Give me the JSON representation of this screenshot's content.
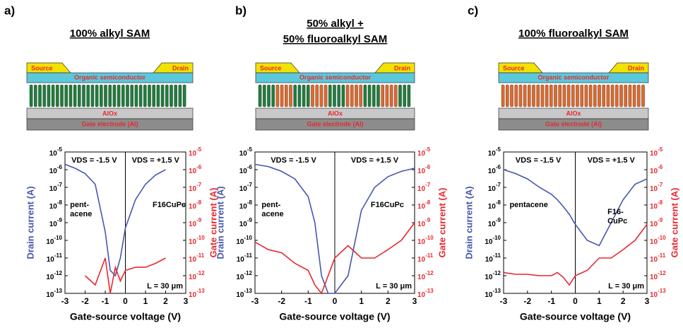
{
  "chart_data": [
    {
      "type": "line",
      "panel_label": "a)",
      "title": [
        "100% alkyl SAM"
      ],
      "device": {
        "source": "Source",
        "drain": "Drain",
        "semiconductor": "Organic semiconductor",
        "dielectric": "AlOx",
        "gate": "Gate electrode (Al)",
        "sam_colors": [
          "#1f7d3c"
        ]
      },
      "x_label": "Gate-source voltage (V)",
      "y_label": "Drain current (A)",
      "y2_label": "Gate current (A)",
      "annotations": {
        "vds_neg": "VDS = -1.5 V",
        "vds_pos": "VDS = +1.5 V",
        "left_material": [
          "pent-",
          "acene"
        ],
        "right_material": [
          "F16CuPc"
        ],
        "length": "L = 30 μm"
      },
      "xlim": [
        -3,
        3
      ],
      "xticks": [
        -3,
        -2,
        -1,
        0,
        1,
        2,
        3
      ],
      "log_y": true,
      "ylim": [
        1e-13,
        1e-05
      ],
      "yticks": [
        {
          "value": 1e-13,
          "label": "10-13"
        },
        {
          "value": 1e-12,
          "label": "10-12"
        },
        {
          "value": 1e-11,
          "label": "10-11"
        },
        {
          "value": 1e-10,
          "label": "10-10"
        },
        {
          "value": 1e-09,
          "label": "10-9"
        },
        {
          "value": 1e-08,
          "label": "10-8"
        },
        {
          "value": 1e-07,
          "label": "10-7"
        },
        {
          "value": 1e-06,
          "label": "10-6"
        },
        {
          "value": 1e-05,
          "label": "10-5"
        }
      ],
      "y2lim": [
        1e-13,
        1e-05
      ],
      "y2ticks": [
        {
          "value": 1e-13,
          "label": "10-13"
        },
        {
          "value": 1e-12,
          "label": "10-12"
        },
        {
          "value": 1e-11,
          "label": "10-11"
        },
        {
          "value": 1e-10,
          "label": "10-10"
        },
        {
          "value": 1e-09,
          "label": "10-9"
        },
        {
          "value": 1e-08,
          "label": "10-8"
        },
        {
          "value": 1e-07,
          "label": "10-7"
        },
        {
          "value": 1e-06,
          "label": "10-6"
        },
        {
          "value": 1e-05,
          "label": "10-5"
        }
      ],
      "x": [
        -3,
        -2.5,
        -2,
        -1.5,
        -1,
        -0.75,
        -0.5,
        -0.25,
        0,
        0.5,
        1,
        1.5,
        2,
        2.5,
        3
      ],
      "series": [
        {
          "color": "#4656b0",
          "values": [
            2e-06,
            1.2e-06,
            6e-07,
            1.5e-07,
            3e-10,
            2e-12,
            1e-12,
            1e-11,
            5e-10,
            2e-08,
            1.5e-07,
            5e-07,
            1e-06,
            null,
            null
          ]
        },
        {
          "color": "#e8282e",
          "axis": "y2",
          "values": [
            null,
            null,
            1e-12,
            3e-13,
            1e-11,
            1e-13,
            3e-12,
            5e-13,
            2e-12,
            3e-12,
            3e-12,
            5e-12,
            1e-11,
            null,
            null
          ]
        }
      ]
    },
    {
      "type": "line",
      "panel_label": "b)",
      "title": [
        "50% alkyl +",
        "50% fluoroalkyl SAM"
      ],
      "device": {
        "source": "Source",
        "drain": "Drain",
        "semiconductor": "Organic semiconductor",
        "dielectric": "AlOx",
        "gate": "Gate electrode (Al)",
        "sam_colors": [
          "#1f7d3c",
          "#e0692a"
        ]
      },
      "x_label": "Gate-source voltage (V)",
      "y_label": "Drain current (A)",
      "y2_label": "Gate current (A)",
      "annotations": {
        "vds_neg": "VDS = -1.5 V",
        "vds_pos": "VDS = +1.5 V",
        "left_material": [
          "pent-",
          "acene"
        ],
        "right_material": [
          "F16CuPc"
        ],
        "length": "L = 30 μm"
      },
      "xlim": [
        -3,
        3
      ],
      "xticks": [
        -3,
        -2,
        -1,
        0,
        1,
        2,
        3
      ],
      "log_y": true,
      "ylim": [
        1e-13,
        1e-05
      ],
      "yticks": [
        {
          "value": 1e-13,
          "label": "10-13"
        },
        {
          "value": 1e-12,
          "label": "10-12"
        },
        {
          "value": 1e-11,
          "label": "10-11"
        },
        {
          "value": 1e-10,
          "label": "10-10"
        },
        {
          "value": 1e-09,
          "label": "10-9"
        },
        {
          "value": 1e-08,
          "label": "10-8"
        },
        {
          "value": 1e-07,
          "label": "10-7"
        },
        {
          "value": 1e-06,
          "label": "10-6"
        },
        {
          "value": 1e-05,
          "label": "10-5"
        }
      ],
      "y2lim": [
        1e-13,
        1e-05
      ],
      "y2ticks": [
        {
          "value": 1e-13,
          "label": "10-13"
        },
        {
          "value": 1e-12,
          "label": "10-12"
        },
        {
          "value": 1e-11,
          "label": "10-11"
        },
        {
          "value": 1e-10,
          "label": "10-10"
        },
        {
          "value": 1e-09,
          "label": "10-9"
        },
        {
          "value": 1e-08,
          "label": "10-8"
        },
        {
          "value": 1e-07,
          "label": "10-7"
        },
        {
          "value": 1e-06,
          "label": "10-6"
        },
        {
          "value": 1e-05,
          "label": "10-5"
        }
      ],
      "x": [
        -3,
        -2.5,
        -2,
        -1.5,
        -1,
        -0.75,
        -0.5,
        -0.25,
        0,
        0.5,
        1,
        1.5,
        2,
        2.5,
        3
      ],
      "series": [
        {
          "color": "#4656b0",
          "values": [
            2e-06,
            1.5e-06,
            8e-07,
            3e-07,
            3e-08,
            1e-09,
            1e-12,
            1e-13,
            1e-13,
            1e-12,
            5e-09,
            1e-07,
            4e-07,
            8e-07,
            1.2e-06
          ]
        },
        {
          "color": "#e8282e",
          "axis": "y2",
          "values": [
            8e-11,
            3e-11,
            2e-11,
            5e-12,
            2e-12,
            3e-13,
            1e-13,
            1e-12,
            1e-11,
            5e-11,
            1e-11,
            1e-11,
            3e-11,
            1e-10,
            1e-09
          ]
        }
      ]
    },
    {
      "type": "line",
      "panel_label": "c)",
      "title": [
        "100% fluoroalkyl SAM"
      ],
      "device": {
        "source": "Source",
        "drain": "Drain",
        "semiconductor": "Organic semiconductor",
        "dielectric": "AlOx",
        "gate": "Gate electrode (Al)",
        "sam_colors": [
          "#e0692a"
        ]
      },
      "x_label": "Gate-source voltage (V)",
      "y_label": "Drain current (A)",
      "y2_label": "Gate current (A)",
      "annotations": {
        "vds_neg": "VDS = -1.5 V",
        "vds_pos": "VDS = +1.5 V",
        "left_material": [
          "pentacene"
        ],
        "right_material": [
          "F16-",
          "CuPc"
        ],
        "length": "L = 30 μm"
      },
      "xlim": [
        -3,
        3
      ],
      "xticks": [
        -3,
        -2,
        -1,
        0,
        1,
        2,
        3
      ],
      "log_y": true,
      "ylim": [
        1e-13,
        1e-05
      ],
      "yticks": [
        {
          "value": 1e-13,
          "label": "10-13"
        },
        {
          "value": 1e-12,
          "label": "10-12"
        },
        {
          "value": 1e-11,
          "label": "10-11"
        },
        {
          "value": 1e-10,
          "label": "10-10"
        },
        {
          "value": 1e-09,
          "label": "10-9"
        },
        {
          "value": 1e-08,
          "label": "10-8"
        },
        {
          "value": 1e-07,
          "label": "10-7"
        },
        {
          "value": 1e-06,
          "label": "10-6"
        },
        {
          "value": 1e-05,
          "label": "10-5"
        }
      ],
      "y2lim": [
        1e-13,
        1e-05
      ],
      "y2ticks": [
        {
          "value": 1e-13,
          "label": "10-13"
        },
        {
          "value": 1e-12,
          "label": "10-12"
        },
        {
          "value": 1e-11,
          "label": "10-11"
        },
        {
          "value": 1e-10,
          "label": "10-10"
        },
        {
          "value": 1e-09,
          "label": "10-9"
        },
        {
          "value": 1e-08,
          "label": "10-8"
        },
        {
          "value": 1e-07,
          "label": "10-7"
        },
        {
          "value": 1e-06,
          "label": "10-6"
        },
        {
          "value": 1e-05,
          "label": "10-5"
        }
      ],
      "x": [
        -3,
        -2.5,
        -2,
        -1.5,
        -1,
        -0.75,
        -0.5,
        -0.25,
        0,
        0.5,
        1,
        1.5,
        2,
        2.5,
        3
      ],
      "series": [
        {
          "color": "#4656b0",
          "values": [
            1e-06,
            6e-07,
            3e-07,
            1e-07,
            4e-08,
            2e-08,
            8e-09,
            3e-09,
            8e-10,
            1e-10,
            5e-11,
            1e-09,
            2e-08,
            1.5e-07,
            3e-07
          ]
        },
        {
          "color": "#e8282e",
          "axis": "y2",
          "values": [
            1.5e-12,
            1.2e-12,
            1.2e-12,
            1e-12,
            1e-12,
            1.5e-12,
            8e-13,
            3e-13,
            1e-12,
            2e-12,
            1e-11,
            1e-11,
            3e-11,
            1e-10,
            8e-10
          ]
        }
      ]
    }
  ]
}
